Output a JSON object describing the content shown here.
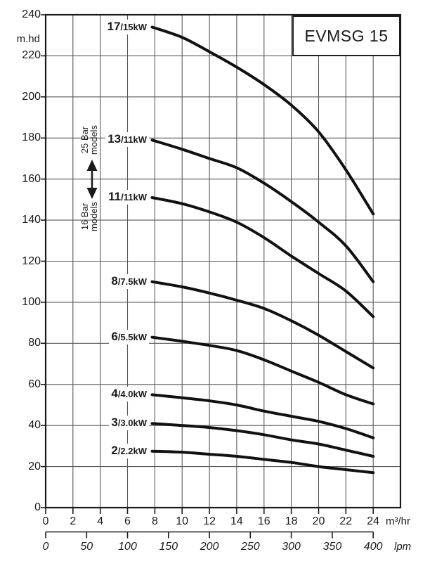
{
  "chart_data": {
    "type": "line",
    "title": "EVMSG 15",
    "xlabel": "m³/hr",
    "ylabel": "m.hd",
    "x2label": "lpm",
    "y_axis": {
      "unit": "m.hd",
      "min": 0,
      "max": 240,
      "tick_step": 20,
      "ticks": [
        0,
        20,
        40,
        60,
        80,
        100,
        120,
        140,
        160,
        180,
        200,
        220,
        240
      ]
    },
    "x_axis": {
      "unit": "m³/hr",
      "min": 0,
      "max": 26,
      "tick_step": 2,
      "ticks": [
        0,
        2,
        4,
        6,
        8,
        10,
        12,
        14,
        16,
        18,
        20,
        22,
        24
      ]
    },
    "x_axis_secondary": {
      "unit": "lpm",
      "min": 0,
      "max": 400,
      "tick_step": 50,
      "ticks": [
        0,
        50,
        100,
        150,
        200,
        250,
        300,
        350,
        400
      ]
    },
    "grid": "on",
    "series": [
      {
        "model": "17",
        "power": "/15kW",
        "label": "17/15kW",
        "points": [
          [
            7.8,
            234
          ],
          [
            10,
            229
          ],
          [
            12,
            222
          ],
          [
            14,
            214.5
          ],
          [
            16,
            206
          ],
          [
            18,
            196
          ],
          [
            20,
            183
          ],
          [
            22,
            164.5
          ],
          [
            24,
            143
          ]
        ]
      },
      {
        "model": "13",
        "power": "/11kW",
        "label": "13/11kW",
        "points": [
          [
            7.8,
            179
          ],
          [
            10,
            174.5
          ],
          [
            12,
            170
          ],
          [
            14,
            165.5
          ],
          [
            16,
            158
          ],
          [
            18,
            149
          ],
          [
            20,
            139
          ],
          [
            22,
            127.5
          ],
          [
            24,
            110
          ]
        ]
      },
      {
        "model": "11",
        "power": "/11kW",
        "label": "11/11kW",
        "points": [
          [
            7.8,
            151
          ],
          [
            10,
            148
          ],
          [
            12,
            144
          ],
          [
            14,
            139
          ],
          [
            16,
            131.5
          ],
          [
            18,
            122.5
          ],
          [
            20,
            114
          ],
          [
            22,
            105.5
          ],
          [
            24,
            93
          ]
        ]
      },
      {
        "model": "8",
        "power": "/7.5kW",
        "label": "8/7.5kW",
        "points": [
          [
            7.8,
            110
          ],
          [
            10,
            107.5
          ],
          [
            12,
            104.5
          ],
          [
            14,
            101
          ],
          [
            16,
            97
          ],
          [
            18,
            91
          ],
          [
            20,
            84
          ],
          [
            22,
            76
          ],
          [
            24,
            68
          ]
        ]
      },
      {
        "model": "6",
        "power": "/5.5kW",
        "label": "6/5.5kW",
        "points": [
          [
            7.8,
            83
          ],
          [
            10,
            81
          ],
          [
            12,
            79
          ],
          [
            14,
            76.5
          ],
          [
            16,
            72
          ],
          [
            18,
            66.5
          ],
          [
            20,
            61
          ],
          [
            22,
            55
          ],
          [
            24,
            50.5
          ]
        ]
      },
      {
        "model": "4",
        "power": "/4.0kW",
        "label": "4/4.0kW",
        "points": [
          [
            7.8,
            55
          ],
          [
            10,
            53.5
          ],
          [
            12,
            52
          ],
          [
            14,
            50
          ],
          [
            16,
            47
          ],
          [
            18,
            44.5
          ],
          [
            20,
            42
          ],
          [
            22,
            38.5
          ],
          [
            24,
            34
          ]
        ]
      },
      {
        "model": "3",
        "power": "/3.0kW",
        "label": "3/3.0kW",
        "points": [
          [
            7.8,
            41
          ],
          [
            10,
            40
          ],
          [
            12,
            39
          ],
          [
            14,
            37.5
          ],
          [
            16,
            35.5
          ],
          [
            18,
            33
          ],
          [
            20,
            31
          ],
          [
            22,
            28
          ],
          [
            24,
            25
          ]
        ]
      },
      {
        "model": "2",
        "power": "/2.2kW",
        "label": "2/2.2kW",
        "points": [
          [
            7.8,
            27.5
          ],
          [
            10,
            27
          ],
          [
            12,
            26
          ],
          [
            14,
            25
          ],
          [
            16,
            23.5
          ],
          [
            18,
            22
          ],
          [
            20,
            20
          ],
          [
            22,
            18.5
          ],
          [
            24,
            17
          ]
        ]
      }
    ],
    "annotations": {
      "bar25": {
        "line1": "25 Bar",
        "line2": "models"
      },
      "bar16": {
        "line1": "16 Bar",
        "line2": "models"
      }
    },
    "colors": {
      "curve": "#111111",
      "grid": "#595959",
      "frame": "#1b1b1b",
      "text": "#1b1b1b"
    }
  }
}
